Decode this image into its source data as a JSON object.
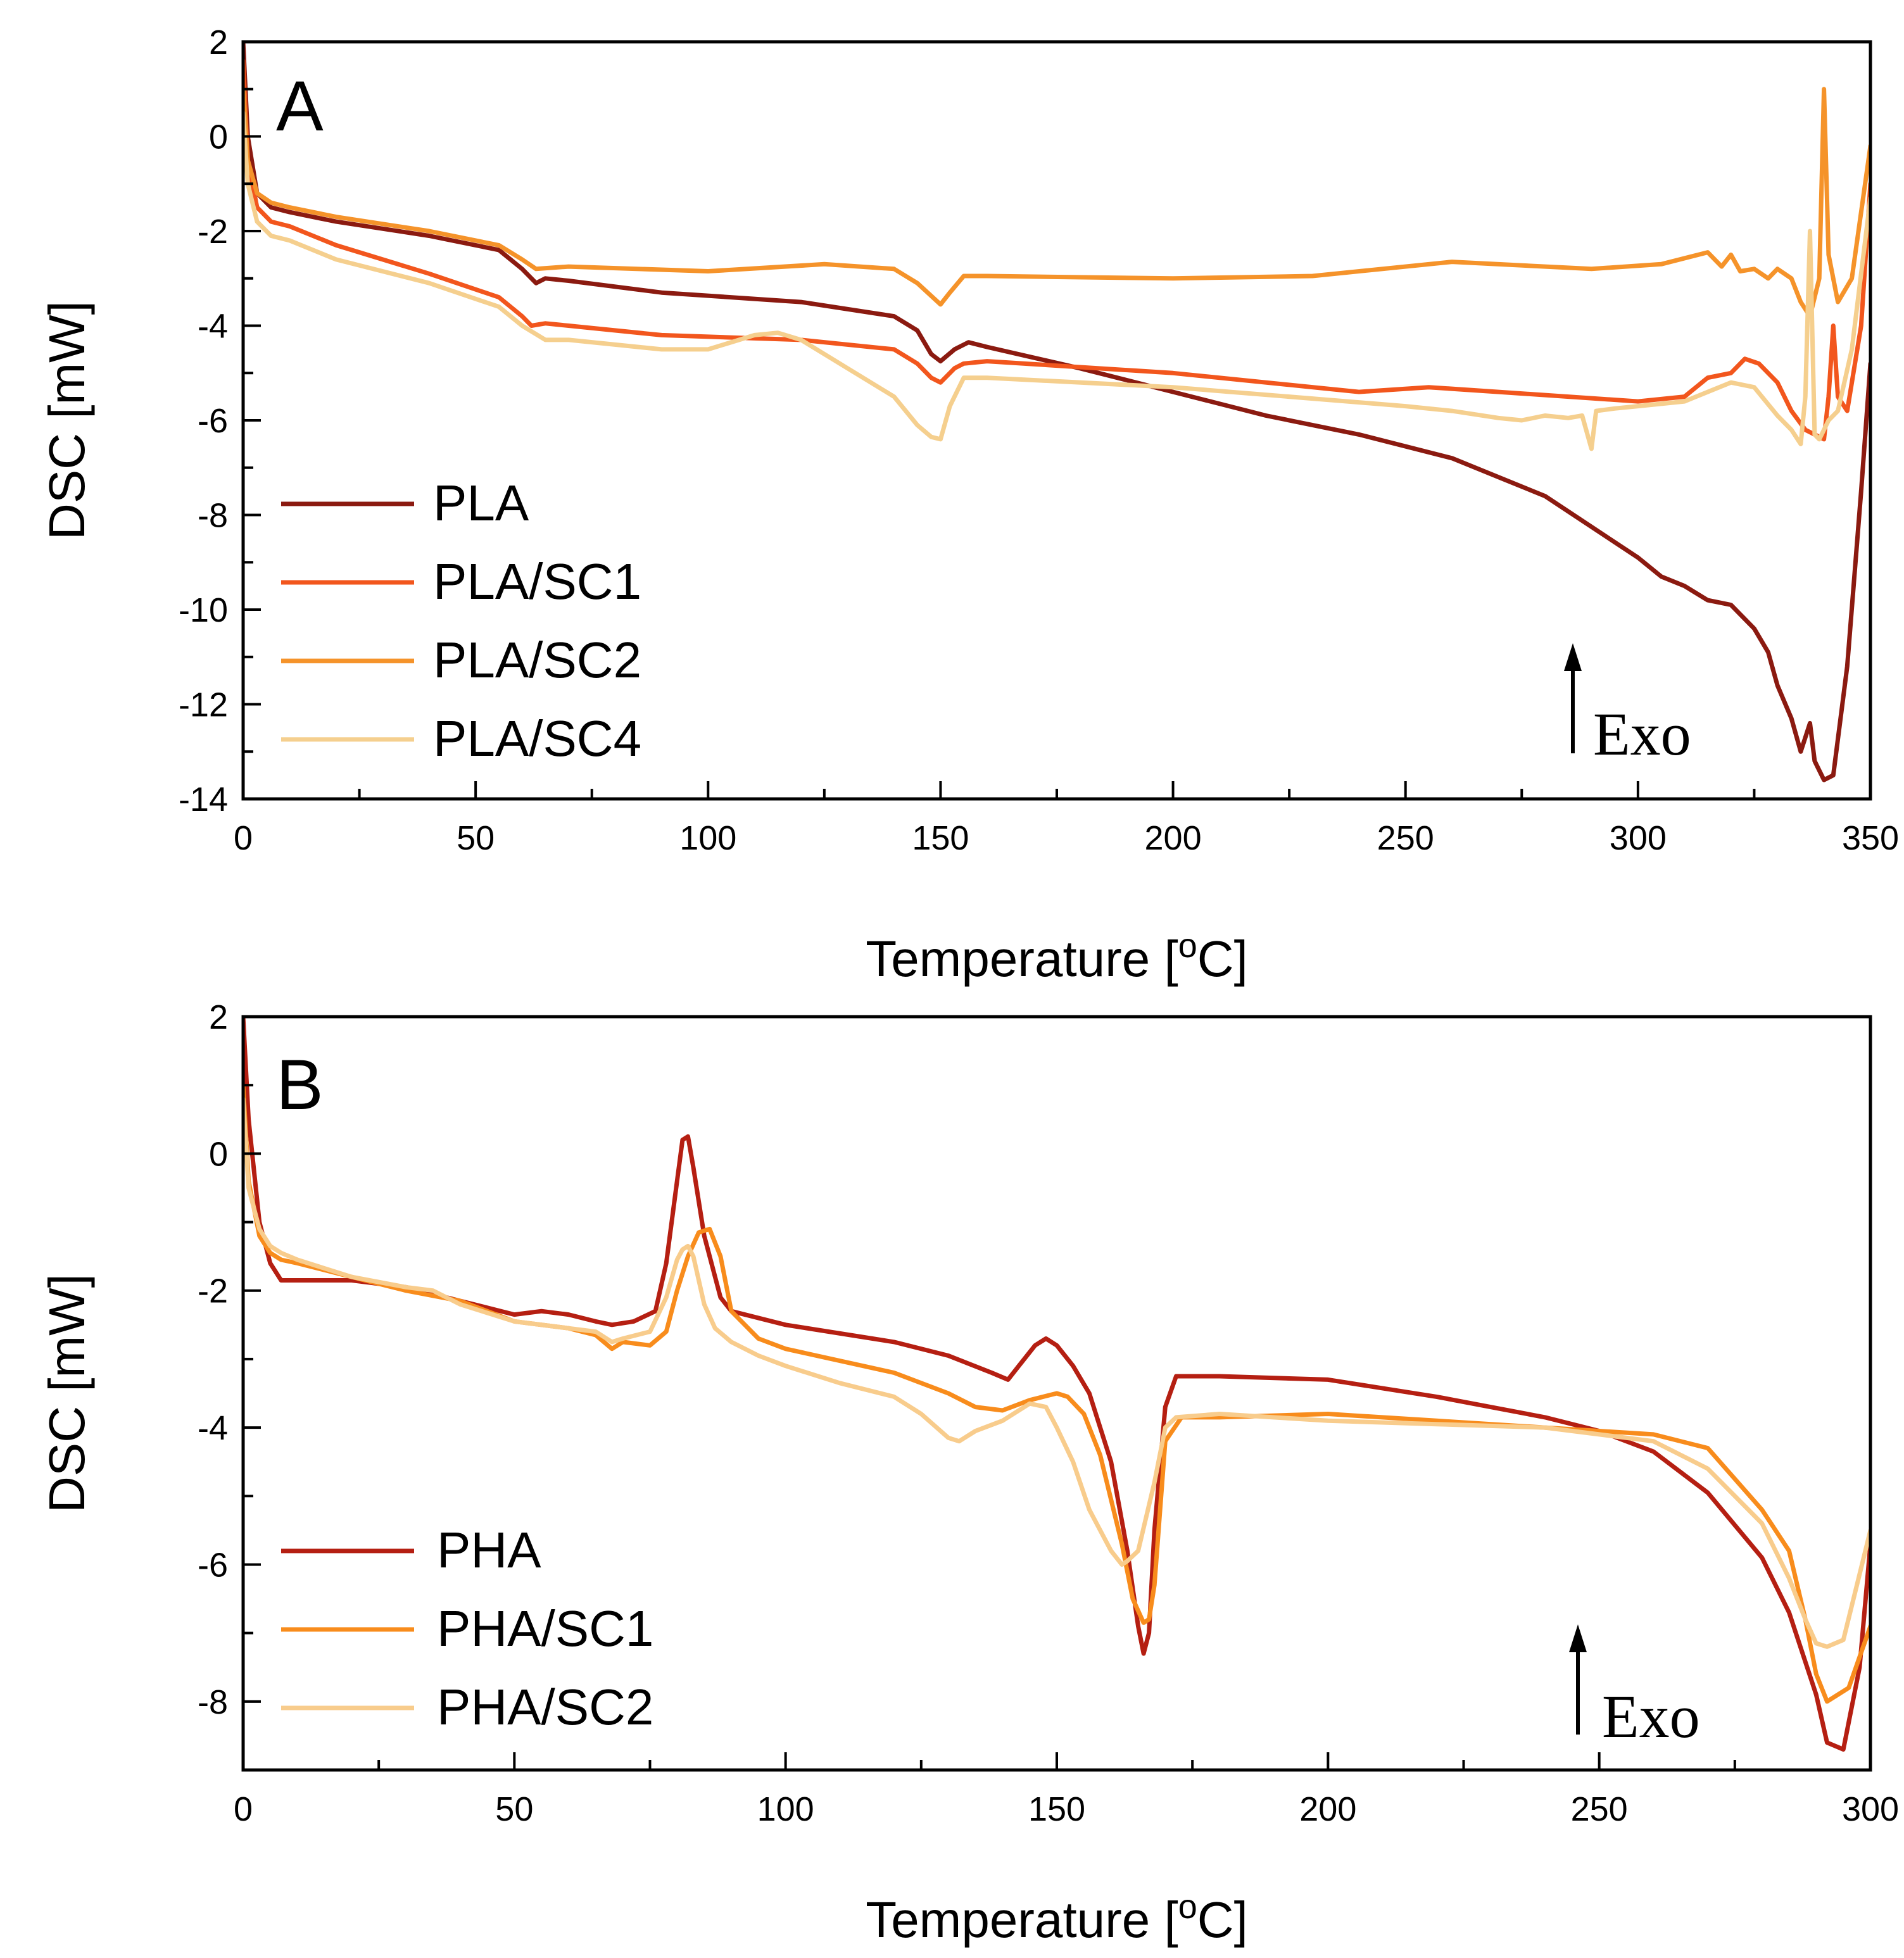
{
  "chart_data": [
    {
      "type": "line",
      "panel_label": "A",
      "xlabel": "Temperature [",
      "xlabel_sup": "o",
      "xlabel_end": "C]",
      "ylabel": "DSC [mW]",
      "xlim": [
        0,
        350
      ],
      "ylim": [
        -14,
        2
      ],
      "xticks": [
        0,
        50,
        100,
        150,
        200,
        250,
        300,
        350
      ],
      "xtick_labels": [
        "0",
        "50",
        "100",
        "150",
        "200",
        "250",
        "300",
        "350"
      ],
      "yticks": [
        2,
        0,
        -2,
        -4,
        -6,
        -8,
        -10,
        -12,
        -14
      ],
      "ytick_labels": [
        "2",
        "0",
        "-2",
        "-4",
        "-6",
        "-8",
        "-10",
        "-12",
        "-14"
      ],
      "annotation": "Exo",
      "series": [
        {
          "name": "PLA",
          "color": "#8b1a10",
          "x": [
            0,
            1,
            3,
            6,
            10,
            20,
            40,
            55,
            60,
            63,
            65,
            70,
            90,
            120,
            140,
            145,
            148,
            150,
            153,
            156,
            160,
            180,
            200,
            220,
            240,
            260,
            280,
            300,
            305,
            310,
            315,
            320,
            325,
            328,
            330,
            333,
            335,
            337,
            338,
            340,
            342,
            345,
            348,
            350
          ],
          "y": [
            2,
            0,
            -1.2,
            -1.5,
            -1.6,
            -1.8,
            -2.1,
            -2.4,
            -2.8,
            -3.1,
            -3.0,
            -3.05,
            -3.3,
            -3.5,
            -3.8,
            -4.1,
            -4.6,
            -4.75,
            -4.5,
            -4.35,
            -4.45,
            -4.9,
            -5.4,
            -5.9,
            -6.3,
            -6.8,
            -7.6,
            -8.9,
            -9.3,
            -9.5,
            -9.8,
            -9.9,
            -10.4,
            -10.9,
            -11.6,
            -12.3,
            -13.0,
            -12.4,
            -13.2,
            -13.6,
            -13.5,
            -11.2,
            -7.5,
            -4.8
          ]
        },
        {
          "name": "PLA/SC1",
          "color": "#f2561d",
          "x": [
            0,
            1,
            3,
            6,
            10,
            20,
            40,
            55,
            60,
            62,
            65,
            70,
            90,
            120,
            140,
            145,
            148,
            150,
            153,
            155,
            160,
            200,
            240,
            255,
            270,
            300,
            310,
            315,
            320,
            323,
            326,
            330,
            333,
            336,
            338,
            340,
            341,
            342,
            343,
            345,
            348,
            350
          ],
          "y": [
            1.6,
            -0.5,
            -1.5,
            -1.8,
            -1.9,
            -2.3,
            -2.9,
            -3.4,
            -3.8,
            -4.0,
            -3.95,
            -4.0,
            -4.2,
            -4.3,
            -4.5,
            -4.8,
            -5.1,
            -5.2,
            -4.9,
            -4.8,
            -4.75,
            -5.0,
            -5.4,
            -5.3,
            -5.4,
            -5.6,
            -5.5,
            -5.1,
            -5.0,
            -4.7,
            -4.8,
            -5.2,
            -5.8,
            -6.2,
            -6.3,
            -6.4,
            -5.5,
            -4.0,
            -5.5,
            -5.8,
            -4.0,
            -1.0
          ]
        },
        {
          "name": "PLA/SC2",
          "color": "#f5932a",
          "x": [
            0,
            1,
            3,
            6,
            10,
            20,
            40,
            55,
            60,
            63,
            70,
            100,
            125,
            140,
            145,
            150,
            152,
            155,
            160,
            200,
            230,
            260,
            290,
            305,
            315,
            318,
            320,
            322,
            325,
            328,
            330,
            333,
            335,
            337,
            339,
            340,
            341,
            343,
            346,
            350
          ],
          "y": [
            1.0,
            -0.5,
            -1.2,
            -1.4,
            -1.5,
            -1.7,
            -2.0,
            -2.3,
            -2.6,
            -2.8,
            -2.75,
            -2.85,
            -2.7,
            -2.8,
            -3.1,
            -3.55,
            -3.3,
            -2.95,
            -2.95,
            -3.0,
            -2.95,
            -2.65,
            -2.8,
            -2.7,
            -2.45,
            -2.75,
            -2.5,
            -2.85,
            -2.8,
            -3.0,
            -2.8,
            -3.0,
            -3.5,
            -3.8,
            -3.0,
            1.0,
            -2.5,
            -3.5,
            -3.0,
            -0.2
          ]
        },
        {
          "name": "PLA/SC4",
          "color": "#f5cf8e",
          "x": [
            0,
            1,
            3,
            6,
            10,
            20,
            40,
            55,
            60,
            65,
            70,
            80,
            90,
            100,
            110,
            115,
            120,
            130,
            140,
            145,
            148,
            150,
            152,
            155,
            160,
            200,
            250,
            260,
            270,
            275,
            280,
            285,
            288,
            290,
            291,
            295,
            300,
            310,
            315,
            320,
            325,
            330,
            333,
            335,
            336,
            337,
            338,
            339,
            341,
            343,
            346,
            350
          ],
          "y": [
            0.5,
            -1.0,
            -1.8,
            -2.1,
            -2.2,
            -2.6,
            -3.1,
            -3.6,
            -4.0,
            -4.3,
            -4.3,
            -4.4,
            -4.5,
            -4.5,
            -4.2,
            -4.15,
            -4.3,
            -4.9,
            -5.5,
            -6.1,
            -6.35,
            -6.4,
            -5.7,
            -5.1,
            -5.1,
            -5.3,
            -5.7,
            -5.8,
            -5.95,
            -6.0,
            -5.9,
            -5.95,
            -5.9,
            -6.6,
            -5.8,
            -5.75,
            -5.7,
            -5.6,
            -5.4,
            -5.2,
            -5.3,
            -5.9,
            -6.2,
            -6.5,
            -5.5,
            -2.0,
            -6.3,
            -6.4,
            -6.0,
            -5.8,
            -4.5,
            -1.3
          ]
        }
      ]
    },
    {
      "type": "line",
      "panel_label": "B",
      "xlabel": "Temperature [",
      "xlabel_sup": "o",
      "xlabel_end": "C]",
      "ylabel": "DSC [mW]",
      "xlim": [
        0,
        300
      ],
      "ylim": [
        -9,
        2
      ],
      "xticks": [
        0,
        50,
        100,
        150,
        200,
        250,
        300
      ],
      "xtick_labels": [
        "0",
        "50",
        "100",
        "150",
        "200",
        "250",
        "300"
      ],
      "yticks": [
        2,
        0,
        -2,
        -4,
        -6,
        -8
      ],
      "ytick_labels": [
        "2",
        "0",
        "-2",
        "-4",
        "-6",
        "-8"
      ],
      "annotation": "Exo",
      "series": [
        {
          "name": "PHA",
          "color": "#b51f12",
          "x": [
            0,
            1,
            3,
            5,
            7,
            10,
            20,
            30,
            40,
            50,
            55,
            60,
            65,
            68,
            72,
            76,
            78,
            80,
            81,
            82,
            83,
            85,
            88,
            90,
            100,
            120,
            130,
            138,
            141,
            143,
            146,
            148,
            150,
            153,
            156,
            160,
            163,
            165,
            166,
            167,
            168,
            170,
            172,
            180,
            200,
            220,
            240,
            250,
            260,
            270,
            280,
            285,
            290,
            292,
            295,
            298,
            300
          ],
          "y": [
            2,
            0.5,
            -1.0,
            -1.6,
            -1.85,
            -1.85,
            -1.85,
            -1.95,
            -2.15,
            -2.35,
            -2.3,
            -2.35,
            -2.45,
            -2.5,
            -2.45,
            -2.3,
            -1.6,
            -0.4,
            0.2,
            0.25,
            -0.2,
            -1.2,
            -2.1,
            -2.3,
            -2.5,
            -2.75,
            -2.95,
            -3.2,
            -3.3,
            -3.1,
            -2.8,
            -2.7,
            -2.8,
            -3.1,
            -3.5,
            -4.5,
            -5.8,
            -6.9,
            -7.3,
            -7.0,
            -5.5,
            -3.7,
            -3.25,
            -3.25,
            -3.3,
            -3.55,
            -3.85,
            -4.05,
            -4.35,
            -4.95,
            -5.9,
            -6.7,
            -7.9,
            -8.6,
            -8.7,
            -7.5,
            -5.7
          ]
        },
        {
          "name": "PHA/SC1",
          "color": "#f88c1c",
          "x": [
            0,
            1,
            3,
            5,
            7,
            10,
            20,
            30,
            40,
            50,
            60,
            65,
            68,
            70,
            75,
            78,
            80,
            82,
            84,
            86,
            88,
            90,
            95,
            100,
            120,
            130,
            135,
            140,
            145,
            150,
            152,
            155,
            158,
            162,
            164,
            166,
            167,
            168,
            170,
            173,
            180,
            200,
            220,
            240,
            250,
            260,
            270,
            280,
            285,
            288,
            290,
            292,
            294,
            296,
            300
          ],
          "y": [
            1.0,
            -0.4,
            -1.2,
            -1.45,
            -1.55,
            -1.6,
            -1.8,
            -2.0,
            -2.15,
            -2.45,
            -2.55,
            -2.65,
            -2.85,
            -2.75,
            -2.8,
            -2.6,
            -2.0,
            -1.5,
            -1.15,
            -1.1,
            -1.5,
            -2.3,
            -2.7,
            -2.85,
            -3.2,
            -3.5,
            -3.7,
            -3.75,
            -3.6,
            -3.5,
            -3.55,
            -3.8,
            -4.4,
            -5.7,
            -6.5,
            -6.85,
            -6.8,
            -6.3,
            -4.2,
            -3.85,
            -3.85,
            -3.8,
            -3.9,
            -4.0,
            -4.05,
            -4.1,
            -4.3,
            -5.2,
            -5.8,
            -6.8,
            -7.6,
            -8.0,
            -7.9,
            -7.8,
            -6.9
          ]
        },
        {
          "name": "PHA/SC2",
          "color": "#f8cc8c",
          "x": [
            0,
            1,
            3,
            5,
            7,
            10,
            20,
            30,
            35,
            40,
            50,
            60,
            65,
            68,
            70,
            75,
            78,
            80,
            81,
            82,
            83,
            85,
            87,
            90,
            95,
            100,
            110,
            120,
            125,
            130,
            132,
            135,
            140,
            145,
            148,
            150,
            153,
            156,
            160,
            162,
            163,
            165,
            168,
            170,
            172,
            180,
            200,
            220,
            240,
            250,
            260,
            270,
            280,
            285,
            288,
            290,
            292,
            295,
            300
          ],
          "y": [
            0.8,
            -0.5,
            -1.1,
            -1.35,
            -1.45,
            -1.55,
            -1.8,
            -1.95,
            -2.0,
            -2.2,
            -2.45,
            -2.55,
            -2.6,
            -2.75,
            -2.7,
            -2.6,
            -2.1,
            -1.55,
            -1.4,
            -1.35,
            -1.5,
            -2.2,
            -2.55,
            -2.75,
            -2.95,
            -3.1,
            -3.35,
            -3.55,
            -3.8,
            -4.15,
            -4.2,
            -4.05,
            -3.9,
            -3.65,
            -3.7,
            -4.0,
            -4.5,
            -5.2,
            -5.8,
            -6.0,
            -5.95,
            -5.8,
            -4.8,
            -4.0,
            -3.85,
            -3.8,
            -3.9,
            -3.95,
            -4.0,
            -4.1,
            -4.2,
            -4.6,
            -5.4,
            -6.2,
            -6.8,
            -7.15,
            -7.2,
            -7.1,
            -5.5
          ]
        }
      ]
    }
  ]
}
